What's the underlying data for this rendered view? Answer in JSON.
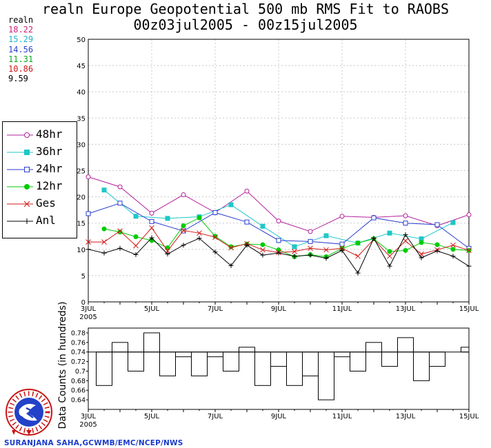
{
  "title_line1": "realn Europe Geopotential 500 mb RMS Fit to RAOBS",
  "title_line2": "00z03jul2005 - 00z15jul2005",
  "stats": {
    "label": "realn",
    "values": [
      {
        "text": "18.22",
        "color": "#d0207a"
      },
      {
        "text": "15.29",
        "color": "#1fb3c9"
      },
      {
        "text": "14.56",
        "color": "#2a3fd0"
      },
      {
        "text": "11.31",
        "color": "#0aa820"
      },
      {
        "text": "10.86",
        "color": "#d01818"
      },
      {
        "text": "9.59",
        "color": "#000000"
      }
    ]
  },
  "legend": {
    "items": [
      {
        "label": "48hr",
        "color": "#b3209c",
        "marker": "open-circle"
      },
      {
        "label": "36hr",
        "color": "#1fc7c7",
        "marker": "filled-square"
      },
      {
        "label": "24hr",
        "color": "#2a3fd0",
        "marker": "open-square"
      },
      {
        "label": "12hr",
        "color": "#00cc00",
        "marker": "filled-circle"
      },
      {
        "label": "Ges",
        "color": "#d01818",
        "marker": "x"
      },
      {
        "label": "Anl",
        "color": "#000000",
        "marker": "plus"
      }
    ]
  },
  "credit": "SURANJANA SAHA,GCWMB/EMC/NCEP/NWS",
  "logo": {
    "text": "NATIONAL WEATHER SERVICE"
  },
  "chart_data": [
    {
      "type": "line",
      "title": "realn Europe Geopotential 500 mb RMS Fit to RAOBS",
      "subtitle": "00z03jul2005 - 00z15jul2005",
      "xlim": [
        0,
        24
      ],
      "ylim": [
        0,
        50
      ],
      "yticks": [
        0,
        5,
        10,
        15,
        20,
        25,
        30,
        35,
        40,
        45,
        50
      ],
      "xticks": [
        {
          "x": 0,
          "label": "3JUL",
          "sublabel": "2005"
        },
        {
          "x": 4,
          "label": "5JUL"
        },
        {
          "x": 8,
          "label": "7JUL"
        },
        {
          "x": 12,
          "label": "9JUL"
        },
        {
          "x": 16,
          "label": "11JUL"
        },
        {
          "x": 20,
          "label": "13JUL"
        },
        {
          "x": 24,
          "label": "15JUL"
        }
      ],
      "x_units": "half-days since 00z03jul2005",
      "grid": true,
      "legend_position": "left",
      "series": [
        {
          "name": "48hr",
          "color": "#b3209c",
          "marker": "open-circle",
          "x": [
            0,
            2,
            4,
            6,
            8,
            10,
            12,
            14,
            16,
            18,
            20,
            22,
            24
          ],
          "y": [
            23.8,
            21.9,
            16.9,
            20.4,
            17.0,
            21.1,
            15.4,
            13.4,
            16.3,
            16.1,
            16.4,
            14.5,
            16.6
          ]
        },
        {
          "name": "36hr",
          "color": "#1fc7c7",
          "marker": "filled-square",
          "x": [
            1,
            3,
            5,
            7,
            9,
            11,
            13,
            15,
            17,
            19,
            21,
            23
          ],
          "y": [
            21.3,
            16.3,
            15.9,
            16.2,
            18.5,
            14.4,
            10.5,
            12.6,
            11.2,
            13.1,
            12.0,
            15.1
          ]
        },
        {
          "name": "24hr",
          "color": "#2a3fd0",
          "marker": "open-square",
          "x": [
            0,
            2,
            4,
            6,
            8,
            10,
            12,
            14,
            16,
            18,
            20,
            22,
            24
          ],
          "y": [
            16.8,
            18.8,
            15.3,
            13.5,
            17.0,
            15.2,
            11.7,
            11.5,
            11.0,
            16.0,
            15.0,
            14.7,
            10.2
          ]
        },
        {
          "name": "12hr",
          "color": "#00cc00",
          "marker": "filled-circle",
          "x": [
            1,
            2,
            3,
            4,
            5,
            6,
            7,
            8,
            9,
            10,
            11,
            12,
            13,
            14,
            15,
            16,
            17,
            18,
            19,
            20,
            21,
            22,
            23,
            24
          ],
          "y": [
            13.9,
            13.3,
            12.4,
            11.7,
            10.3,
            14.5,
            16.0,
            12.5,
            10.5,
            11.0,
            10.9,
            9.9,
            8.6,
            9.0,
            8.6,
            10.2,
            11.2,
            12.0,
            9.6,
            9.8,
            11.3,
            10.9,
            10.0,
            9.8
          ]
        },
        {
          "name": "Ges",
          "color": "#d01818",
          "marker": "x",
          "x": [
            0,
            1,
            2,
            3,
            4,
            5,
            6,
            7,
            8,
            9,
            10,
            11,
            12,
            13,
            14,
            15,
            16,
            17,
            18,
            19,
            20,
            21,
            22,
            23,
            24
          ],
          "y": [
            11.4,
            11.4,
            13.5,
            10.7,
            14.1,
            9.7,
            13.6,
            13.1,
            12.3,
            10.3,
            11.1,
            9.9,
            9.4,
            9.6,
            10.2,
            9.9,
            10.2,
            8.7,
            11.9,
            8.7,
            11.6,
            9.1,
            9.9,
            10.8,
            9.8
          ]
        },
        {
          "name": "Anl",
          "color": "#000000",
          "marker": "plus",
          "x": [
            0,
            1,
            2,
            3,
            4,
            5,
            6,
            7,
            8,
            9,
            10,
            11,
            12,
            13,
            14,
            15,
            16,
            17,
            18,
            19,
            20,
            21,
            22,
            23,
            24
          ],
          "y": [
            10.0,
            9.3,
            10.2,
            9.0,
            12.2,
            9.1,
            10.8,
            12.1,
            9.5,
            6.9,
            10.8,
            8.9,
            9.3,
            8.7,
            8.9,
            8.3,
            9.8,
            5.5,
            12.1,
            6.8,
            12.8,
            8.4,
            9.7,
            8.7,
            6.8
          ]
        }
      ]
    },
    {
      "type": "bar",
      "ylabel": "Data Counts (in hundreds)",
      "xlim": [
        0,
        24
      ],
      "ylim": [
        0.62,
        0.79
      ],
      "yticks": [
        0.64,
        0.66,
        0.68,
        0.7,
        0.72,
        0.74,
        0.76,
        0.78
      ],
      "reference_line": 0.74,
      "xticks": [
        {
          "x": 0,
          "label": "3JUL",
          "sublabel": "2005"
        },
        {
          "x": 4,
          "label": "5JUL"
        },
        {
          "x": 8,
          "label": "7JUL"
        },
        {
          "x": 12,
          "label": "9JUL"
        },
        {
          "x": 16,
          "label": "11JUL"
        },
        {
          "x": 20,
          "label": "13JUL"
        },
        {
          "x": 24,
          "label": "15JUL"
        }
      ],
      "x": [
        0,
        1,
        2,
        3,
        4,
        5,
        6,
        7,
        8,
        9,
        10,
        11,
        12,
        13,
        14,
        15,
        16,
        17,
        18,
        19,
        20,
        21,
        22,
        23,
        24
      ],
      "values": [
        0.74,
        0.67,
        0.76,
        0.7,
        0.78,
        0.69,
        0.73,
        0.69,
        0.73,
        0.7,
        0.75,
        0.67,
        0.71,
        0.67,
        0.69,
        0.64,
        0.73,
        0.7,
        0.76,
        0.71,
        0.77,
        0.68,
        0.71,
        0.74,
        0.75
      ]
    }
  ]
}
